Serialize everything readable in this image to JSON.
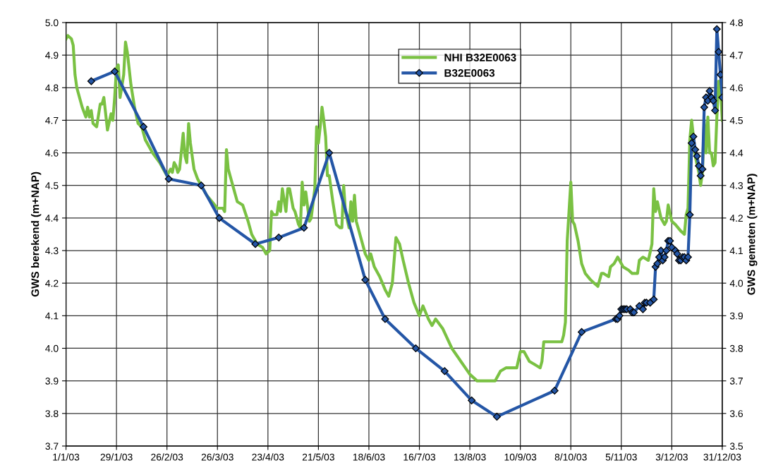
{
  "chart_data": {
    "type": "line",
    "xlabel": null,
    "ylabel": "GWS berekend (m+NAP)",
    "y2label": "GWS gemeten (m+NAP)",
    "xlim": [
      "2003-01-01",
      "2003-12-31"
    ],
    "xticks": [
      {
        "value": "2003-01-01",
        "label": "1/1/03"
      },
      {
        "value": "2003-01-29",
        "label": "29/1/03"
      },
      {
        "value": "2003-02-26",
        "label": "26/2/03"
      },
      {
        "value": "2003-03-26",
        "label": "26/3/03"
      },
      {
        "value": "2003-04-23",
        "label": "23/4/03"
      },
      {
        "value": "2003-05-21",
        "label": "21/5/03"
      },
      {
        "value": "2003-06-18",
        "label": "18/6/03"
      },
      {
        "value": "2003-07-16",
        "label": "16/7/03"
      },
      {
        "value": "2003-08-13",
        "label": "13/8/03"
      },
      {
        "value": "2003-09-10",
        "label": "10/9/03"
      },
      {
        "value": "2003-10-08",
        "label": "8/10/03"
      },
      {
        "value": "2003-11-05",
        "label": "5/11/03"
      },
      {
        "value": "2003-12-03",
        "label": "3/12/03"
      },
      {
        "value": "2003-12-31",
        "label": "31/12/03"
      }
    ],
    "ylim": [
      3.7,
      5.0
    ],
    "yticks": [
      {
        "value": 3.7,
        "label": "3.7"
      },
      {
        "value": 3.8,
        "label": "3.8"
      },
      {
        "value": 3.9,
        "label": "3.9"
      },
      {
        "value": 4.0,
        "label": "4.0"
      },
      {
        "value": 4.1,
        "label": "4.1"
      },
      {
        "value": 4.2,
        "label": "4.2"
      },
      {
        "value": 4.3,
        "label": "4.3"
      },
      {
        "value": 4.4,
        "label": "4.4"
      },
      {
        "value": 4.5,
        "label": "4.5"
      },
      {
        "value": 4.6,
        "label": "4.6"
      },
      {
        "value": 4.7,
        "label": "4.7"
      },
      {
        "value": 4.8,
        "label": "4.8"
      },
      {
        "value": 4.9,
        "label": "4.9"
      },
      {
        "value": 5.0,
        "label": "5.0"
      }
    ],
    "y2lim": [
      3.5,
      4.8
    ],
    "y2ticks": [
      {
        "value": 3.5,
        "label": "3.5"
      },
      {
        "value": 3.6,
        "label": "3.6"
      },
      {
        "value": 3.7,
        "label": "3.7"
      },
      {
        "value": 3.8,
        "label": "3.8"
      },
      {
        "value": 3.9,
        "label": "3.9"
      },
      {
        "value": 4.0,
        "label": "4.0"
      },
      {
        "value": 4.1,
        "label": "4.1"
      },
      {
        "value": 4.2,
        "label": "4.2"
      },
      {
        "value": 4.3,
        "label": "4.3"
      },
      {
        "value": 4.4,
        "label": "4.4"
      },
      {
        "value": 4.5,
        "label": "4.5"
      },
      {
        "value": 4.6,
        "label": "4.6"
      },
      {
        "value": 4.7,
        "label": "4.7"
      },
      {
        "value": 4.8,
        "label": "4.8"
      }
    ],
    "grid": true,
    "legend": "top",
    "line_style": "solid",
    "series": [
      {
        "name": "NHI B32E0063",
        "color": "#7ac143",
        "marker": "none",
        "x": [
          "2003-01-01",
          "2003-01-02",
          "2003-01-04",
          "2003-01-05",
          "2003-01-06",
          "2003-01-07",
          "2003-01-10",
          "2003-01-12",
          "2003-01-13",
          "2003-01-14",
          "2003-01-15",
          "2003-01-16",
          "2003-01-18",
          "2003-01-20",
          "2003-01-21",
          "2003-01-22",
          "2003-01-24",
          "2003-01-26",
          "2003-01-27",
          "2003-01-28",
          "2003-01-29",
          "2003-01-30",
          "2003-01-31",
          "2003-02-02",
          "2003-02-03",
          "2003-02-04",
          "2003-02-06",
          "2003-02-08",
          "2003-02-10",
          "2003-02-12",
          "2003-02-14",
          "2003-02-18",
          "2003-02-22",
          "2003-02-26",
          "2003-02-28",
          "2003-03-01",
          "2003-03-02",
          "2003-03-03",
          "2003-03-04",
          "2003-03-05",
          "2003-03-07",
          "2003-03-08",
          "2003-03-09",
          "2003-03-10",
          "2003-03-11",
          "2003-03-13",
          "2003-03-15",
          "2003-03-17",
          "2003-03-20",
          "2003-03-23",
          "2003-03-26",
          "2003-03-29",
          "2003-03-30",
          "2003-03-31",
          "2003-04-01",
          "2003-04-04",
          "2003-04-06",
          "2003-04-09",
          "2003-04-12",
          "2003-04-14",
          "2003-04-17",
          "2003-04-20",
          "2003-04-22",
          "2003-04-24",
          "2003-04-25",
          "2003-04-26",
          "2003-04-28",
          "2003-04-29",
          "2003-04-30",
          "2003-05-01",
          "2003-05-03",
          "2003-05-04",
          "2003-05-05",
          "2003-05-07",
          "2003-05-08",
          "2003-05-10",
          "2003-05-11",
          "2003-05-12",
          "2003-05-13",
          "2003-05-14",
          "2003-05-16",
          "2003-05-17",
          "2003-05-19",
          "2003-05-20",
          "2003-05-21",
          "2003-05-22",
          "2003-05-23",
          "2003-05-24",
          "2003-05-25",
          "2003-05-26",
          "2003-05-27",
          "2003-05-29",
          "2003-05-31",
          "2003-06-02",
          "2003-06-03",
          "2003-06-04",
          "2003-06-05",
          "2003-06-07",
          "2003-06-08",
          "2003-06-09",
          "2003-06-10",
          "2003-06-11",
          "2003-06-13",
          "2003-06-16",
          "2003-06-18",
          "2003-06-19",
          "2003-06-21",
          "2003-06-24",
          "2003-06-27",
          "2003-06-29",
          "2003-07-01",
          "2003-07-03",
          "2003-07-05",
          "2003-07-07",
          "2003-07-10",
          "2003-07-13",
          "2003-07-16",
          "2003-07-18",
          "2003-07-21",
          "2003-07-23",
          "2003-07-25",
          "2003-07-29",
          "2003-08-03",
          "2003-08-08",
          "2003-08-13",
          "2003-08-17",
          "2003-08-22",
          "2003-08-27",
          "2003-08-30",
          "2003-09-02",
          "2003-09-05",
          "2003-09-08",
          "2003-09-10",
          "2003-09-12",
          "2003-09-15",
          "2003-09-18",
          "2003-09-21",
          "2003-09-22",
          "2003-09-23",
          "2003-09-25",
          "2003-09-27",
          "2003-09-28",
          "2003-09-30",
          "2003-10-03",
          "2003-10-04",
          "2003-10-05",
          "2003-10-06",
          "2003-10-07",
          "2003-10-08",
          "2003-10-09",
          "2003-10-10",
          "2003-10-12",
          "2003-10-14",
          "2003-10-16",
          "2003-10-19",
          "2003-10-21",
          "2003-10-23",
          "2003-10-25",
          "2003-10-26",
          "2003-10-29",
          "2003-10-30",
          "2003-11-01",
          "2003-11-03",
          "2003-11-06",
          "2003-11-09",
          "2003-11-11",
          "2003-11-14",
          "2003-11-15",
          "2003-11-17",
          "2003-11-20",
          "2003-11-22",
          "2003-11-23",
          "2003-11-24",
          "2003-11-25",
          "2003-11-27",
          "2003-11-29",
          "2003-11-30",
          "2003-12-01",
          "2003-12-03",
          "2003-12-05",
          "2003-12-08",
          "2003-12-10",
          "2003-12-11",
          "2003-12-12",
          "2003-12-13",
          "2003-12-14",
          "2003-12-15",
          "2003-12-16",
          "2003-12-18",
          "2003-12-19",
          "2003-12-20",
          "2003-12-21",
          "2003-12-22",
          "2003-12-23",
          "2003-12-24",
          "2003-12-25",
          "2003-12-26",
          "2003-12-27",
          "2003-12-28",
          "2003-12-29",
          "2003-12-30",
          "2003-12-31"
        ],
        "values": [
          4.95,
          4.96,
          4.95,
          4.93,
          4.84,
          4.8,
          4.74,
          4.71,
          4.74,
          4.71,
          4.73,
          4.69,
          4.68,
          4.75,
          4.75,
          4.77,
          4.67,
          4.72,
          4.7,
          4.77,
          4.86,
          4.87,
          4.77,
          4.84,
          4.94,
          4.91,
          4.81,
          4.74,
          4.69,
          4.68,
          4.64,
          4.6,
          4.57,
          4.53,
          4.55,
          4.54,
          4.57,
          4.56,
          4.54,
          4.55,
          4.66,
          4.59,
          4.57,
          4.69,
          4.63,
          4.55,
          4.52,
          4.5,
          4.47,
          4.45,
          4.43,
          4.43,
          4.42,
          4.61,
          4.55,
          4.49,
          4.45,
          4.44,
          4.39,
          4.35,
          4.32,
          4.31,
          4.29,
          4.3,
          4.42,
          4.41,
          4.41,
          4.45,
          4.42,
          4.49,
          4.42,
          4.49,
          4.49,
          4.43,
          4.42,
          4.38,
          4.37,
          4.51,
          4.44,
          4.48,
          4.39,
          4.4,
          4.49,
          4.68,
          4.63,
          4.68,
          4.74,
          4.7,
          4.65,
          4.53,
          4.53,
          4.45,
          4.38,
          4.37,
          4.37,
          4.5,
          4.42,
          4.37,
          4.45,
          4.39,
          4.47,
          4.39,
          4.35,
          4.29,
          4.27,
          4.29,
          4.25,
          4.22,
          4.18,
          4.16,
          4.2,
          4.34,
          4.32,
          4.27,
          4.2,
          4.14,
          4.1,
          4.13,
          4.09,
          4.07,
          4.09,
          4.06,
          4.0,
          3.96,
          3.92,
          3.9,
          3.9,
          3.9,
          3.93,
          3.94,
          3.94,
          3.94,
          3.99,
          3.99,
          3.96,
          3.95,
          3.94,
          3.96,
          4.02,
          4.02,
          4.02,
          4.02,
          4.02,
          4.02,
          4.04,
          4.08,
          4.33,
          4.42,
          4.51,
          4.39,
          4.38,
          4.33,
          4.26,
          4.23,
          4.21,
          4.2,
          4.19,
          4.23,
          4.23,
          4.22,
          4.25,
          4.26,
          4.28,
          4.25,
          4.24,
          4.23,
          4.23,
          4.27,
          4.28,
          4.27,
          4.32,
          4.49,
          4.42,
          4.45,
          4.4,
          4.38,
          4.39,
          4.44,
          4.39,
          4.38,
          4.36,
          4.35,
          4.41,
          4.43,
          4.64,
          4.7,
          4.65,
          4.59,
          4.54,
          4.5,
          4.54,
          4.7,
          4.6,
          4.71,
          4.6,
          4.6,
          4.56,
          4.57,
          4.71,
          4.82,
          4.8,
          4.7
        ]
      },
      {
        "name": "B32E0063",
        "color": "#2456a6",
        "marker": "diamond",
        "axis": "y2",
        "x": [
          "2003-01-15",
          "2003-01-28",
          "2003-02-13",
          "2003-02-27",
          "2003-03-17",
          "2003-03-27",
          "2003-04-16",
          "2003-04-29",
          "2003-05-13",
          "2003-05-27",
          "2003-06-16",
          "2003-06-27",
          "2003-07-14",
          "2003-07-30",
          "2003-08-14",
          "2003-08-28",
          "2003-09-29",
          "2003-10-14",
          "2003-11-02",
          "2003-11-03",
          "2003-11-04",
          "2003-11-05",
          "2003-11-06",
          "2003-11-07",
          "2003-11-08",
          "2003-11-10",
          "2003-11-11",
          "2003-11-12",
          "2003-11-15",
          "2003-11-17",
          "2003-11-18",
          "2003-11-19",
          "2003-11-21",
          "2003-11-23",
          "2003-11-24",
          "2003-11-25",
          "2003-11-26",
          "2003-11-27",
          "2003-11-28",
          "2003-11-29",
          "2003-11-30",
          "2003-12-01",
          "2003-12-02",
          "2003-12-03",
          "2003-12-05",
          "2003-12-06",
          "2003-12-07",
          "2003-12-08",
          "2003-12-09",
          "2003-12-10",
          "2003-12-11",
          "2003-12-12",
          "2003-12-13",
          "2003-12-14",
          "2003-12-15",
          "2003-12-16",
          "2003-12-17",
          "2003-12-18",
          "2003-12-19",
          "2003-12-20",
          "2003-12-21",
          "2003-12-22",
          "2003-12-23",
          "2003-12-24",
          "2003-12-25",
          "2003-12-26",
          "2003-12-27",
          "2003-12-28",
          "2003-12-29",
          "2003-12-30",
          "2003-12-31"
        ],
        "values": [
          4.62,
          4.65,
          4.48,
          4.32,
          4.3,
          4.2,
          4.12,
          4.14,
          4.17,
          4.4,
          4.01,
          3.89,
          3.8,
          3.73,
          3.64,
          3.59,
          3.67,
          3.85,
          3.89,
          3.89,
          3.9,
          3.92,
          3.92,
          3.92,
          3.92,
          3.92,
          3.91,
          3.91,
          3.93,
          3.92,
          3.94,
          3.94,
          3.94,
          3.95,
          4.05,
          4.06,
          4.08,
          4.1,
          4.07,
          4.08,
          4.1,
          4.13,
          4.13,
          4.11,
          4.1,
          4.09,
          4.07,
          4.07,
          4.08,
          4.08,
          4.07,
          4.08,
          4.21,
          4.43,
          4.45,
          4.41,
          4.39,
          4.36,
          4.33,
          4.35,
          4.54,
          4.57,
          4.56,
          4.59,
          4.57,
          4.56,
          4.53,
          4.78,
          4.71,
          4.64,
          4.57
        ]
      }
    ]
  }
}
